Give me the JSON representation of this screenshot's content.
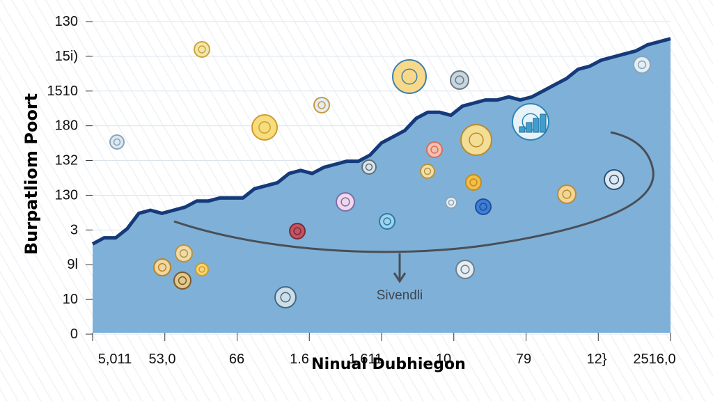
{
  "chart_data": {
    "type": "area",
    "title": "",
    "ylabel": "Burpatliom Poort",
    "xlabel": "Ninual Dubhiegon",
    "y_tick_labels": [
      "130",
      "15i)",
      "1510",
      "180",
      "132",
      "130",
      "3",
      "9l",
      "10",
      "0"
    ],
    "x_tick_labels": [
      "5,011",
      "53,0",
      "66",
      "1.6",
      "1.611",
      "10",
      "79",
      "12}",
      "2516,0"
    ],
    "annotation": "Sivendli",
    "grid": true,
    "legend": "none",
    "area_fill_color": "#7fb0d8",
    "line_color": "#153a7a",
    "ylim": [
      0,
      100
    ],
    "x": [
      0,
      2,
      4,
      6,
      8,
      10,
      12,
      14,
      16,
      18,
      20,
      22,
      24,
      26,
      28,
      30,
      32,
      34,
      36,
      38,
      40,
      42,
      44,
      46,
      48,
      50,
      52,
      54,
      56,
      58,
      60,
      62,
      64,
      66,
      68,
      70,
      72,
      74,
      76,
      78,
      80,
      82,
      84,
      86,
      88,
      90,
      92,
      94,
      96,
      98,
      100
    ],
    "values": [
      29,
      31,
      31,
      34,
      39,
      40,
      39,
      40,
      41,
      43,
      43,
      44,
      44,
      44,
      47,
      48,
      49,
      52,
      53,
      52,
      54,
      55,
      56,
      56,
      58,
      62,
      64,
      66,
      70,
      72,
      72,
      71,
      74,
      75,
      76,
      76,
      77,
      76,
      77,
      79,
      81,
      83,
      86,
      87,
      89,
      90,
      91,
      92,
      94,
      95,
      96
    ],
    "curve_arrow_color": "#4a4e56"
  }
}
